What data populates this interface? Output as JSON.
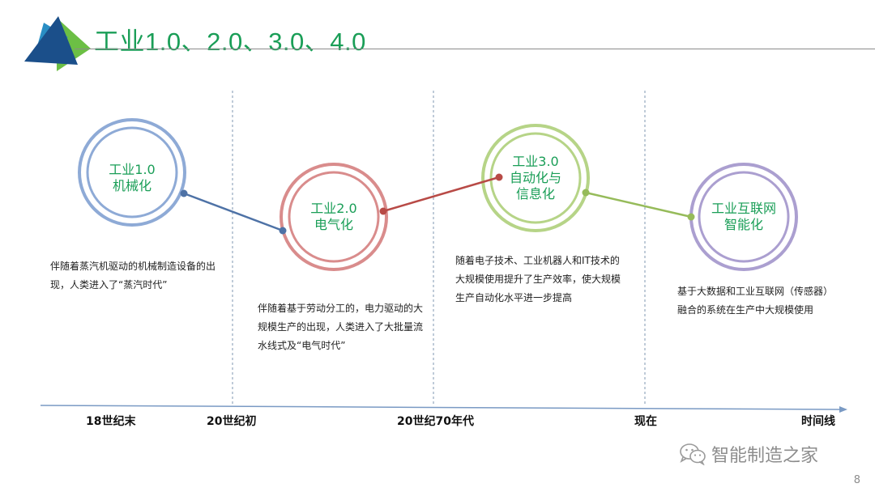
{
  "slide": {
    "title": "工业1.0、2.0、3.0、4.0",
    "page_number": "8"
  },
  "stages": [
    {
      "line1": "工业1.0",
      "line2": "机械化",
      "color": "#8eaad6",
      "text_color": "#1a9e57",
      "description": "伴随着蒸汽机驱动的机械制造设备的出现，人类进入了“蒸汽时代”"
    },
    {
      "line1": "工业2.0",
      "line2": "电气化",
      "color": "#d98c8c",
      "text_color": "#1a9e57",
      "description": "伴随着基于劳动分工的，电力驱动的大规模生产的出现，人类进入了大批量流水线式及“电气时代”"
    },
    {
      "line1": "工业3.0",
      "line2": "自动化与",
      "line3": "信息化",
      "color": "#b6d487",
      "text_color": "#1a9e57",
      "description": "随着电子技术、工业机器人和IT技术的大规模使用提升了生产效率，使大规模生产自动化水平进一步提高"
    },
    {
      "line1": "工业互联网",
      "line2": "智能化",
      "color": "#ab9fd0",
      "text_color": "#1a9e57",
      "description": "基于大数据和工业互联网（传感器）融合的系统在生产中大规模使用"
    }
  ],
  "connectors": [
    {
      "color": "#4e72a6"
    },
    {
      "color": "#b84a46"
    },
    {
      "color": "#96bb5a"
    }
  ],
  "timeline": {
    "labels": [
      "18世纪末",
      "20世纪初",
      "20世纪70年代",
      "现在",
      "时间线"
    ],
    "axis_color": "#7a9ac4"
  },
  "watermark": {
    "icon": "wechat-icon",
    "text": "智能制造之家"
  },
  "logo": {
    "icon": "triangle-logo-icon",
    "colors": [
      "#1b4f8a",
      "#2a8ec4",
      "#6cbf45"
    ]
  }
}
